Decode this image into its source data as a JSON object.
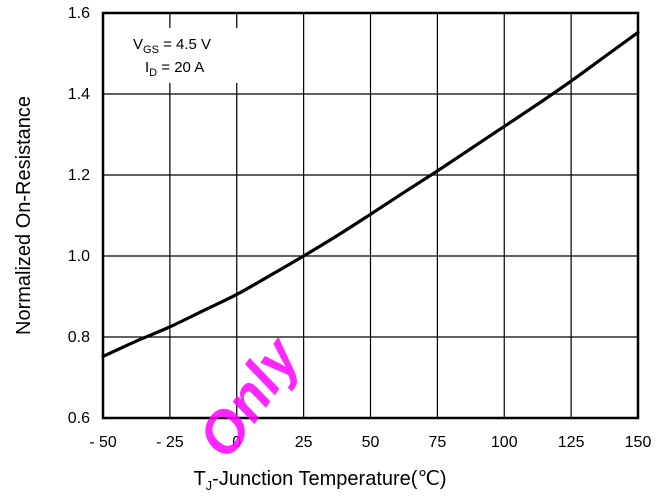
{
  "chart_data": {
    "type": "line",
    "title": "",
    "xlabel": {
      "main": "T",
      "sub": "J",
      "rest": "-Junction Temperature(℃)"
    },
    "ylabel": "Normalized On-Resistance",
    "xlim": [
      -50,
      150
    ],
    "ylim": [
      0.6,
      1.6
    ],
    "xticks": [
      "- 50",
      "- 25",
      "0",
      "25",
      "50",
      "75",
      "100",
      "125",
      "150"
    ],
    "xtick_values": [
      -50,
      -25,
      0,
      25,
      50,
      75,
      100,
      125,
      150
    ],
    "yticks": [
      "0.6",
      "0.8",
      "1.0",
      "1.2",
      "1.4",
      "1.6"
    ],
    "ytick_values": [
      0.6,
      0.8,
      1.0,
      1.2,
      1.4,
      1.6
    ],
    "grid": true,
    "legend": "none",
    "annotations": [
      {
        "main": "V",
        "sub": "GS",
        "rest": " = 4.5 V"
      },
      {
        "main": "I",
        "sub": "D",
        "rest": " = 20 A"
      }
    ],
    "watermark": "Only",
    "series": [
      {
        "color": "#000000",
        "x": [
          -50,
          -37.5,
          -25,
          -12.5,
          0,
          12.5,
          25,
          37.5,
          50,
          62.5,
          75,
          87.5,
          100,
          112.5,
          125,
          137.5,
          150
        ],
        "y": [
          0.752,
          0.79,
          0.825,
          0.865,
          0.905,
          0.952,
          1.0,
          1.05,
          1.103,
          1.157,
          1.21,
          1.265,
          1.32,
          1.375,
          1.432,
          1.492,
          1.552
        ]
      }
    ]
  }
}
